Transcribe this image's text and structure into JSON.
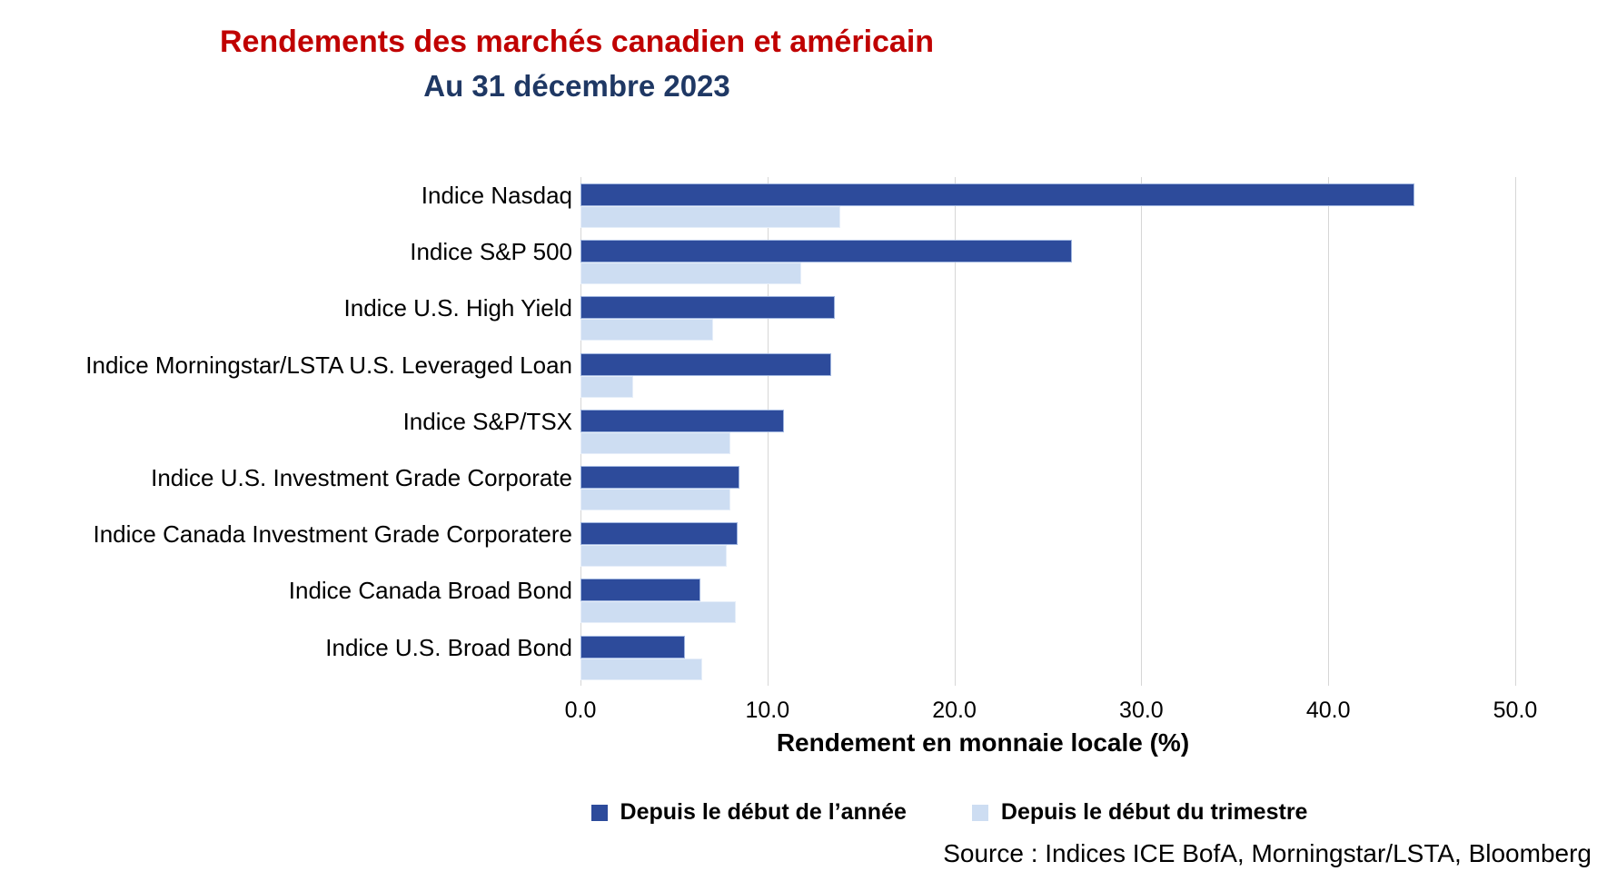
{
  "header": {
    "title": "Rendements des marchés canadien et américain",
    "subtitle": "Au 31 décembre 2023"
  },
  "chart_data": {
    "type": "bar",
    "orientation": "horizontal",
    "title": "Rendements des marchés canadien et américain",
    "subtitle": "Au 31 décembre 2023",
    "categories": [
      "Indice Nasdaq",
      "Indice S&P 500",
      "Indice U.S. High Yield",
      "Indice Morningstar/LSTA U.S. Leveraged Loan",
      "Indice S&P/TSX",
      "Indice U.S. Investment Grade Corporate",
      "Indice Canada Investment Grade Corporatere",
      "Indice Canada Broad Bond",
      "Indice U.S. Broad Bond"
    ],
    "series": [
      {
        "name": "Depuis le début de l’année",
        "color": "#2D4B9B",
        "values": [
          44.6,
          26.3,
          13.6,
          13.4,
          10.9,
          8.5,
          8.4,
          6.4,
          5.6
        ]
      },
      {
        "name": "Depuis le début du trimestre",
        "color": "#CDDDF2",
        "values": [
          13.9,
          11.8,
          7.1,
          2.8,
          8.0,
          8.0,
          7.8,
          8.3,
          6.5
        ]
      }
    ],
    "xlabel": "Rendement en monnaie locale (%)",
    "xlim": [
      0,
      51
    ],
    "xticks": [
      0,
      10,
      20,
      30,
      40,
      50
    ],
    "tick_labels": [
      "0.0",
      "10.0",
      "20.0",
      "30.0",
      "40.0",
      "50.0"
    ],
    "grid": true,
    "legend_position": "bottom"
  },
  "source": "Source : Indices ICE BofA, Morningstar/LSTA, Bloomberg",
  "colors": {
    "title_red": "#C00000",
    "subtitle_navy": "#1F3864",
    "bar_ytd": "#2D4B9B",
    "bar_qtd": "#CDDDF2",
    "gridline": "#D6D6D6"
  }
}
